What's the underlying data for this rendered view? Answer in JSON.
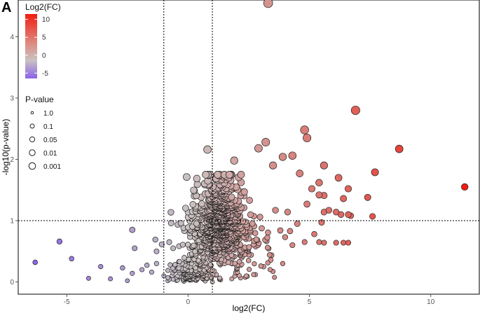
{
  "panel_label": "A",
  "chart_data": {
    "type": "scatter",
    "xlabel": "log2(FC)",
    "ylabel": "-log10(p-value)",
    "xlim": [
      -7,
      12
    ],
    "ylim": [
      -0.2,
      4.6
    ],
    "x_ticks": [
      -5,
      0,
      5,
      10
    ],
    "y_ticks": [
      0,
      1,
      2,
      3,
      4
    ],
    "x_tick_labels": [
      "-5",
      "0",
      "5",
      "10"
    ],
    "y_tick_labels": [
      "0",
      "1",
      "2",
      "3",
      "4"
    ],
    "grid": false,
    "thresholds": {
      "vertical_x": [
        -1,
        1
      ],
      "horizontal_y": 1
    },
    "color_legend": {
      "title": "Log2(FC)",
      "ticks": [
        10,
        5,
        0,
        -5
      ],
      "tick_labels": [
        "10",
        "5",
        "0",
        "-5"
      ],
      "range": [
        -6.5,
        11.5
      ],
      "colors": {
        "low": "#8a63e8",
        "mid": "#c9c2c2",
        "high": "#f01d10"
      }
    },
    "size_legend": {
      "title": "P-value",
      "entries": [
        "1.0",
        "0.1",
        "0.05",
        "0.01",
        "0.001"
      ]
    },
    "labeled_points": [
      {
        "x": 3.3,
        "y": 4.55
      },
      {
        "x": 6.9,
        "y": 2.8
      },
      {
        "x": 8.7,
        "y": 2.17
      },
      {
        "x": 11.4,
        "y": 1.55
      },
      {
        "x": 7.7,
        "y": 1.79
      },
      {
        "x": 7.4,
        "y": 1.38
      },
      {
        "x": 7.6,
        "y": 1.07
      },
      {
        "x": 4.8,
        "y": 2.48
      },
      {
        "x": 4.9,
        "y": 2.35
      },
      {
        "x": 3.2,
        "y": 2.28
      },
      {
        "x": 2.9,
        "y": 2.18
      },
      {
        "x": 0.8,
        "y": 2.16
      },
      {
        "x": 1.9,
        "y": 1.98
      },
      {
        "x": 3.9,
        "y": 2.04
      },
      {
        "x": 4.3,
        "y": 2.06
      },
      {
        "x": 3.5,
        "y": 1.9
      },
      {
        "x": 4.6,
        "y": 1.77
      },
      {
        "x": 5.6,
        "y": 1.9
      },
      {
        "x": 6.2,
        "y": 1.7
      },
      {
        "x": 5.4,
        "y": 1.62
      },
      {
        "x": 6.6,
        "y": 1.52
      },
      {
        "x": 5.1,
        "y": 1.52
      },
      {
        "x": 5.4,
        "y": 1.42
      },
      {
        "x": 5.6,
        "y": 1.41
      },
      {
        "x": 6.4,
        "y": 1.36
      },
      {
        "x": 4.9,
        "y": 1.27
      },
      {
        "x": 5.6,
        "y": 1.14
      },
      {
        "x": 5.8,
        "y": 1.17
      },
      {
        "x": 6.1,
        "y": 1.14
      },
      {
        "x": 6.3,
        "y": 1.1
      },
      {
        "x": 6.6,
        "y": 1.1
      },
      {
        "x": 6.7,
        "y": 1.08
      },
      {
        "x": 4.1,
        "y": 1.14
      },
      {
        "x": 3.6,
        "y": 1.17
      },
      {
        "x": 4.5,
        "y": 0.95
      },
      {
        "x": 5.5,
        "y": 0.97
      },
      {
        "x": 5.2,
        "y": 0.78
      },
      {
        "x": 4.8,
        "y": 0.65
      },
      {
        "x": 5.4,
        "y": 0.65
      },
      {
        "x": 5.6,
        "y": 0.64
      },
      {
        "x": 6.1,
        "y": 0.64
      },
      {
        "x": 6.4,
        "y": 0.64
      },
      {
        "x": 6.6,
        "y": 0.64
      },
      {
        "x": 4.2,
        "y": 0.83
      },
      {
        "x": 3.8,
        "y": 0.84
      },
      {
        "x": 4.0,
        "y": 0.73
      },
      {
        "x": 4.3,
        "y": 0.6
      },
      {
        "x": -5.3,
        "y": 0.66
      },
      {
        "x": -6.3,
        "y": 0.32
      },
      {
        "x": -4.8,
        "y": 0.38
      },
      {
        "x": -4.1,
        "y": 0.06
      },
      {
        "x": -3.6,
        "y": 0.25
      },
      {
        "x": -3.2,
        "y": 0.05
      },
      {
        "x": -2.7,
        "y": 0.23
      },
      {
        "x": -2.5,
        "y": 0.02
      },
      {
        "x": -2.3,
        "y": 0.14
      },
      {
        "x": -2.3,
        "y": 0.85
      },
      {
        "x": -2.2,
        "y": 0.55
      },
      {
        "x": -1.9,
        "y": 0.2
      },
      {
        "x": -1.5,
        "y": 0.16
      },
      {
        "x": -1.3,
        "y": 0.5
      },
      {
        "x": -1.3,
        "y": 0.3
      },
      {
        "x": -1.35,
        "y": 0.69
      },
      {
        "x": -1.0,
        "y": 0.1
      },
      {
        "x": -0.7,
        "y": 0.96
      },
      {
        "x": 0.0,
        "y": 0.89
      },
      {
        "x": 1.0,
        "y": 0.0
      },
      {
        "x": 1.3,
        "y": 0.05
      },
      {
        "x": 1.8,
        "y": 0.05
      },
      {
        "x": 2.4,
        "y": 0.1
      },
      {
        "x": 2.7,
        "y": 0.12
      },
      {
        "x": 3.5,
        "y": 0.17
      },
      {
        "x": 3.9,
        "y": 0.3
      },
      {
        "x": 3.0,
        "y": 0.26
      },
      {
        "x": 2.6,
        "y": 0.44
      }
    ],
    "dense_cloud": {
      "seed": 7,
      "count": 900,
      "x_center": 1.3,
      "x_spread": 0.55,
      "tail_spread": 1.0,
      "y_mode": 1.05,
      "y_spread": 0.35,
      "origin_cluster_count": 140
    }
  }
}
